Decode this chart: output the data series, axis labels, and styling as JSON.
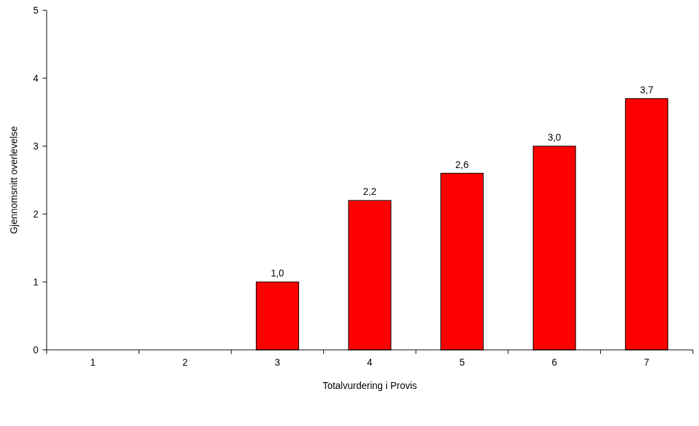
{
  "chart_data": {
    "type": "bar",
    "xlabel": "Totalvurdering i Provis",
    "ylabel": "Gjennomsnitt overlevelse",
    "categories": [
      "1",
      "2",
      "3",
      "4",
      "5",
      "6",
      "7"
    ],
    "values": [
      null,
      null,
      1.0,
      2.2,
      2.6,
      3.0,
      3.7
    ],
    "value_labels": [
      null,
      null,
      "1,0",
      "2,2",
      "2,6",
      "3,0",
      "3,7"
    ],
    "color": "#ff0000",
    "ylim": [
      0,
      5
    ],
    "yticks": [
      0,
      1,
      2,
      3,
      4,
      5
    ],
    "grid": false
  }
}
